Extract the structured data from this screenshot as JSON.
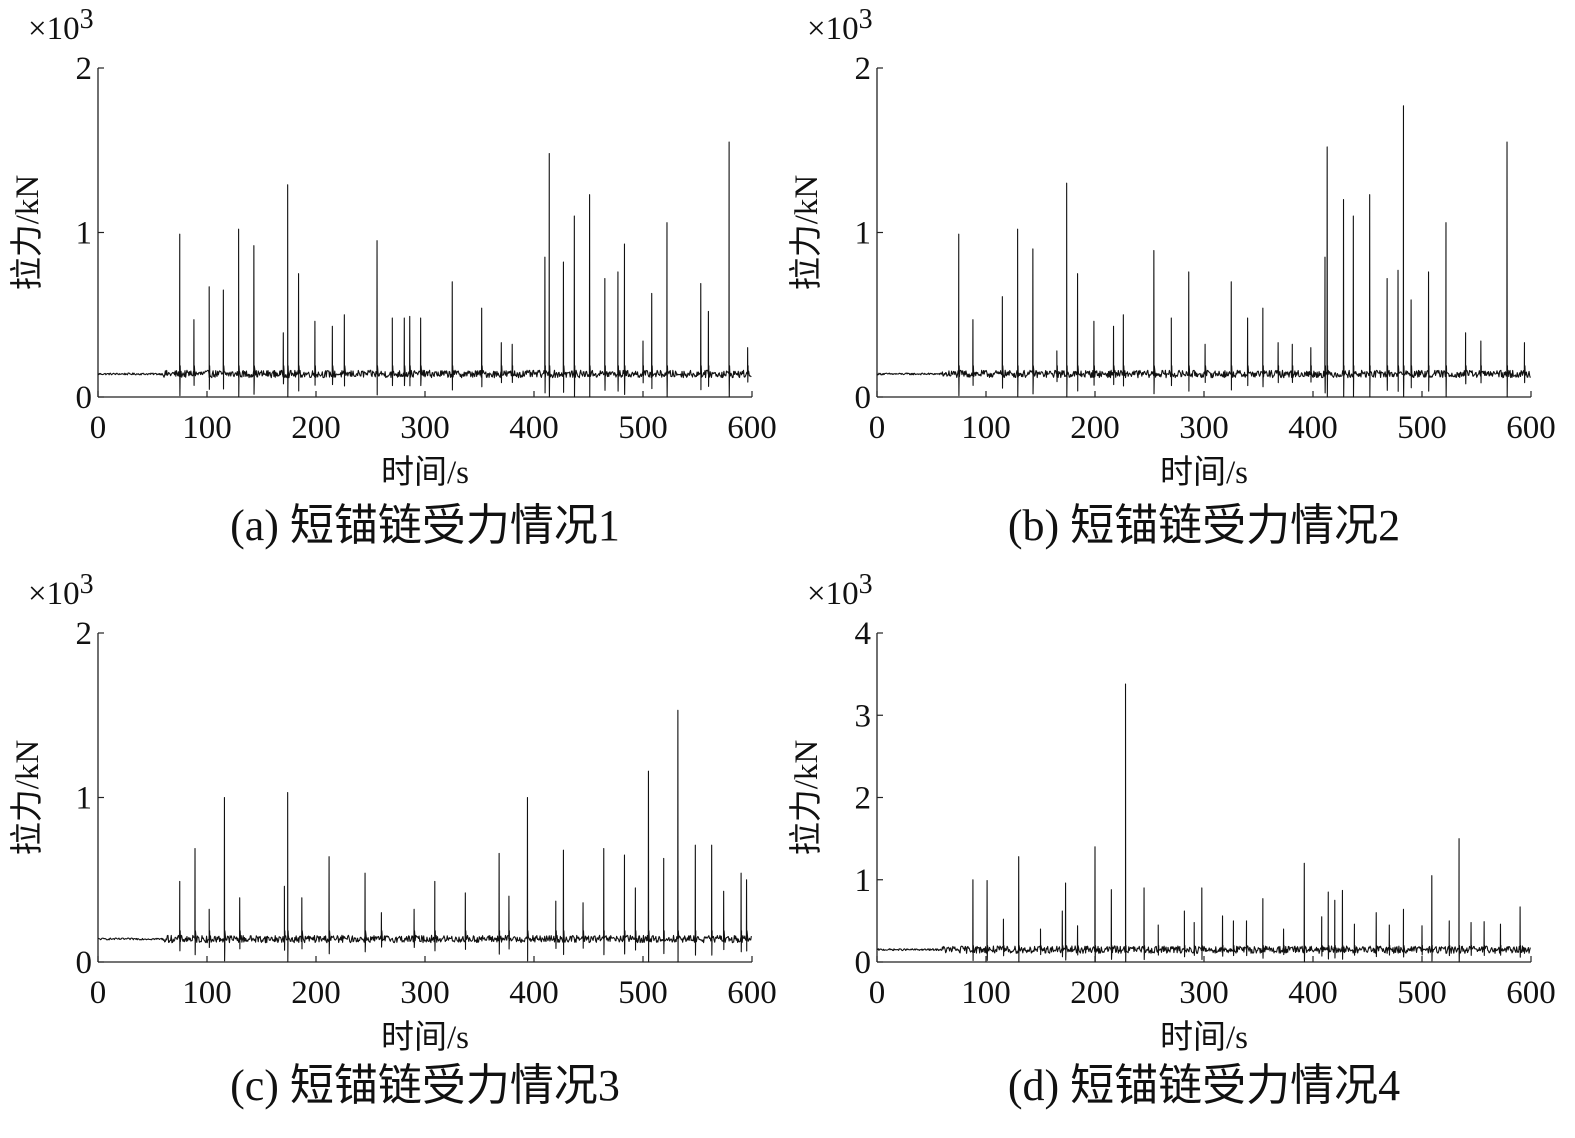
{
  "chart_data": [
    {
      "type": "line",
      "caption": "(a) 短锚链受力情况1",
      "xlabel": "时间/s",
      "ylabel": "拉力/kN",
      "y_multiplier": "×10",
      "y_multiplier_exponent": "3",
      "xlim": [
        0,
        600
      ],
      "ylim": [
        0,
        2
      ],
      "xticks": [
        0,
        100,
        200,
        300,
        400,
        500,
        600
      ],
      "yticks": [
        0,
        1,
        2
      ],
      "series": [
        {
          "baseline": 0.14,
          "peaks": [
            [
              75,
              0.99
            ],
            [
              88,
              0.47
            ],
            [
              102,
              0.67
            ],
            [
              115,
              0.65
            ],
            [
              129,
              1.02
            ],
            [
              143,
              0.92
            ],
            [
              170,
              0.39
            ],
            [
              174,
              1.29
            ],
            [
              184,
              0.75
            ],
            [
              199,
              0.46
            ],
            [
              215,
              0.43
            ],
            [
              226,
              0.5
            ],
            [
              256,
              0.95
            ],
            [
              270,
              0.48
            ],
            [
              281,
              0.48
            ],
            [
              286,
              0.49
            ],
            [
              296,
              0.48
            ],
            [
              325,
              0.7
            ],
            [
              352,
              0.54
            ],
            [
              370,
              0.33
            ],
            [
              380,
              0.32
            ],
            [
              410,
              0.85
            ],
            [
              414,
              1.48
            ],
            [
              427,
              0.82
            ],
            [
              437,
              1.1
            ],
            [
              451,
              1.23
            ],
            [
              465,
              0.72
            ],
            [
              477,
              0.76
            ],
            [
              483,
              0.93
            ],
            [
              500,
              0.34
            ],
            [
              508,
              0.63
            ],
            [
              522,
              1.06
            ],
            [
              553,
              0.69
            ],
            [
              560,
              0.52
            ],
            [
              579,
              1.55
            ],
            [
              596,
              0.3
            ]
          ]
        }
      ]
    },
    {
      "type": "line",
      "caption": "(b) 短锚链受力情况2",
      "xlabel": "时间/s",
      "ylabel": "拉力/kN",
      "y_multiplier": "×10",
      "y_multiplier_exponent": "3",
      "xlim": [
        0,
        600
      ],
      "ylim": [
        0,
        2
      ],
      "xticks": [
        0,
        100,
        200,
        300,
        400,
        500,
        600
      ],
      "yticks": [
        0,
        1,
        2
      ],
      "series": [
        {
          "baseline": 0.14,
          "peaks": [
            [
              75,
              0.99
            ],
            [
              88,
              0.47
            ],
            [
              115,
              0.61
            ],
            [
              129,
              1.02
            ],
            [
              143,
              0.9
            ],
            [
              165,
              0.28
            ],
            [
              174,
              1.3
            ],
            [
              184,
              0.75
            ],
            [
              199,
              0.46
            ],
            [
              217,
              0.43
            ],
            [
              226,
              0.5
            ],
            [
              254,
              0.89
            ],
            [
              270,
              0.48
            ],
            [
              286,
              0.76
            ],
            [
              301,
              0.32
            ],
            [
              325,
              0.7
            ],
            [
              340,
              0.48
            ],
            [
              354,
              0.54
            ],
            [
              368,
              0.33
            ],
            [
              381,
              0.32
            ],
            [
              398,
              0.3
            ],
            [
              411,
              0.85
            ],
            [
              413,
              1.52
            ],
            [
              428,
              1.2
            ],
            [
              437,
              1.1
            ],
            [
              452,
              1.23
            ],
            [
              468,
              0.72
            ],
            [
              478,
              0.77
            ],
            [
              483,
              1.77
            ],
            [
              490,
              0.59
            ],
            [
              506,
              0.76
            ],
            [
              522,
              1.06
            ],
            [
              540,
              0.39
            ],
            [
              554,
              0.34
            ],
            [
              578,
              1.55
            ],
            [
              594,
              0.33
            ]
          ]
        }
      ]
    },
    {
      "type": "line",
      "caption": "(c) 短锚链受力情况3",
      "xlabel": "时间/s",
      "ylabel": "拉力/kN",
      "y_multiplier": "×10",
      "y_multiplier_exponent": "3",
      "xlim": [
        0,
        600
      ],
      "ylim": [
        0,
        2
      ],
      "xticks": [
        0,
        100,
        200,
        300,
        400,
        500,
        600
      ],
      "yticks": [
        0,
        1,
        2
      ],
      "series": [
        {
          "baseline": 0.14,
          "peaks": [
            [
              75,
              0.49
            ],
            [
              89,
              0.69
            ],
            [
              102,
              0.32
            ],
            [
              116,
              1.0
            ],
            [
              130,
              0.39
            ],
            [
              171,
              0.46
            ],
            [
              174,
              1.03
            ],
            [
              187,
              0.39
            ],
            [
              212,
              0.64
            ],
            [
              245,
              0.54
            ],
            [
              260,
              0.3
            ],
            [
              290,
              0.32
            ],
            [
              309,
              0.49
            ],
            [
              337,
              0.42
            ],
            [
              368,
              0.66
            ],
            [
              377,
              0.4
            ],
            [
              394,
              1.0
            ],
            [
              420,
              0.37
            ],
            [
              427,
              0.68
            ],
            [
              445,
              0.36
            ],
            [
              464,
              0.69
            ],
            [
              483,
              0.65
            ],
            [
              493,
              0.45
            ],
            [
              505,
              1.16
            ],
            [
              519,
              0.63
            ],
            [
              532,
              1.53
            ],
            [
              548,
              0.71
            ],
            [
              563,
              0.71
            ],
            [
              574,
              0.43
            ],
            [
              590,
              0.54
            ],
            [
              595,
              0.5
            ]
          ]
        }
      ]
    },
    {
      "type": "line",
      "caption": "(d) 短锚链受力情况4",
      "xlabel": "时间/s",
      "ylabel": "拉力/kN",
      "y_multiplier": "×10",
      "y_multiplier_exponent": "3",
      "xlim": [
        0,
        600
      ],
      "ylim": [
        0,
        4
      ],
      "xticks": [
        0,
        100,
        200,
        300,
        400,
        500,
        600
      ],
      "yticks": [
        0,
        1,
        2,
        3,
        4
      ],
      "series": [
        {
          "baseline": 0.15,
          "peaks": [
            [
              88,
              1.0
            ],
            [
              101,
              0.99
            ],
            [
              116,
              0.52
            ],
            [
              130,
              1.28
            ],
            [
              150,
              0.4
            ],
            [
              170,
              0.62
            ],
            [
              173,
              0.96
            ],
            [
              184,
              0.44
            ],
            [
              200,
              1.4
            ],
            [
              215,
              0.88
            ],
            [
              228,
              3.38
            ],
            [
              245,
              0.9
            ],
            [
              258,
              0.45
            ],
            [
              282,
              0.62
            ],
            [
              291,
              0.48
            ],
            [
              298,
              0.9
            ],
            [
              317,
              0.56
            ],
            [
              327,
              0.5
            ],
            [
              339,
              0.5
            ],
            [
              354,
              0.77
            ],
            [
              373,
              0.4
            ],
            [
              392,
              1.2
            ],
            [
              408,
              0.55
            ],
            [
              414,
              0.85
            ],
            [
              420,
              0.75
            ],
            [
              427,
              0.87
            ],
            [
              438,
              0.46
            ],
            [
              458,
              0.6
            ],
            [
              470,
              0.45
            ],
            [
              483,
              0.64
            ],
            [
              500,
              0.44
            ],
            [
              509,
              1.05
            ],
            [
              525,
              0.5
            ],
            [
              534,
              1.5
            ],
            [
              545,
              0.48
            ],
            [
              557,
              0.49
            ],
            [
              572,
              0.46
            ],
            [
              590,
              0.67
            ]
          ]
        }
      ]
    }
  ]
}
